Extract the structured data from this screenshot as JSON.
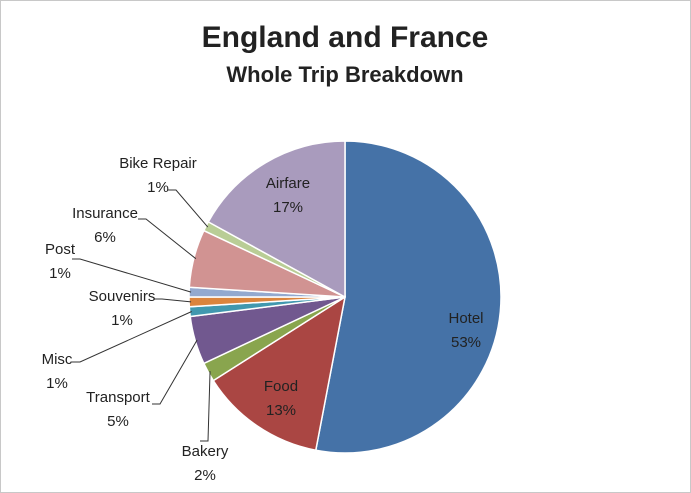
{
  "chart_data": {
    "type": "pie",
    "title": "England and France",
    "subtitle": "Whole Trip Breakdown",
    "categories": [
      "Hotel",
      "Food",
      "Bakery",
      "Transport",
      "Misc",
      "Souvenirs",
      "Post",
      "Insurance",
      "Bike Repair",
      "Airfare"
    ],
    "values": [
      53,
      13,
      2,
      5,
      1,
      1,
      1,
      6,
      1,
      17
    ],
    "value_labels": [
      "53%",
      "13%",
      "2%",
      "5%",
      "1%",
      "1%",
      "1%",
      "6%",
      "1%",
      "17%"
    ],
    "colors": [
      "#4572A7",
      "#AA4643",
      "#89A54E",
      "#71588F",
      "#4198AF",
      "#DB843D",
      "#93A9CF",
      "#D19392",
      "#B9CD96",
      "#A99BBD"
    ]
  }
}
